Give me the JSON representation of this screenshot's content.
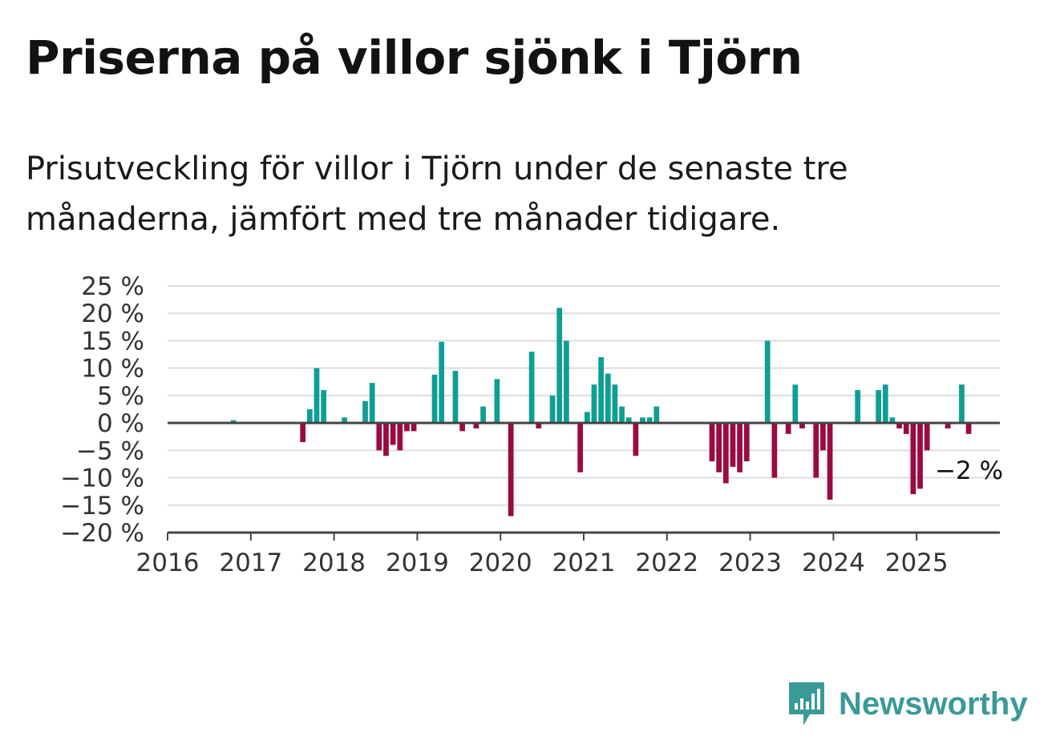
{
  "title": "Priserna på villor sjönk i Tjörn",
  "subtitle": "Prisutveckling för villor i Tjörn under de senaste tre månaderna, jämfört med tre månader tidigare.",
  "brand": {
    "name": "Newsworthy"
  },
  "colors": {
    "positive": "#0f9e94",
    "negative": "#9b0a42",
    "grid": "#dddddd",
    "axis": "#444444"
  },
  "chart_data": {
    "type": "bar",
    "x_start": "2016-01",
    "x_frequency": "monthly",
    "xlim": [
      2016,
      2026
    ],
    "ylim": [
      -20,
      25
    ],
    "y_ticks": [
      25,
      20,
      15,
      10,
      5,
      0,
      -5,
      -10,
      -15,
      -20
    ],
    "y_tick_labels": [
      "25 %",
      "20 %",
      "15 %",
      "10 %",
      "5 %",
      "0 %",
      "−5 %",
      "−10 %",
      "−15 %",
      "−20 %"
    ],
    "x_tick_labels": [
      "2016",
      "2017",
      "2018",
      "2019",
      "2020",
      "2021",
      "2022",
      "2023",
      "2024",
      "2025"
    ],
    "grid": true,
    "values": [
      null,
      null,
      null,
      null,
      null,
      null,
      null,
      null,
      null,
      0.5,
      null,
      null,
      null,
      null,
      null,
      null,
      null,
      null,
      null,
      -3.5,
      2.5,
      10,
      6,
      null,
      null,
      1,
      null,
      null,
      4,
      7.3,
      -5,
      -6,
      -4,
      -5,
      -1.5,
      -1.5,
      null,
      null,
      8.8,
      14.8,
      null,
      9.5,
      -1.5,
      null,
      -1,
      3,
      null,
      8,
      null,
      -17,
      null,
      null,
      13,
      -1,
      null,
      5,
      21,
      15,
      null,
      -9,
      2,
      7,
      12,
      9,
      7,
      3,
      1,
      -6,
      1,
      1,
      3,
      null,
      null,
      null,
      null,
      null,
      null,
      null,
      -7,
      -9,
      -11,
      -8,
      -9,
      -7,
      null,
      null,
      15,
      -10,
      null,
      -2,
      7,
      -1,
      null,
      -10,
      -5,
      -14,
      null,
      null,
      null,
      6,
      null,
      null,
      6,
      7,
      1,
      -1,
      -2,
      -13,
      -12,
      -5,
      null,
      null,
      -1,
      null,
      7,
      -2
    ],
    "annotation": {
      "label": "−2 %",
      "value": -2,
      "date": "2025-08"
    }
  }
}
